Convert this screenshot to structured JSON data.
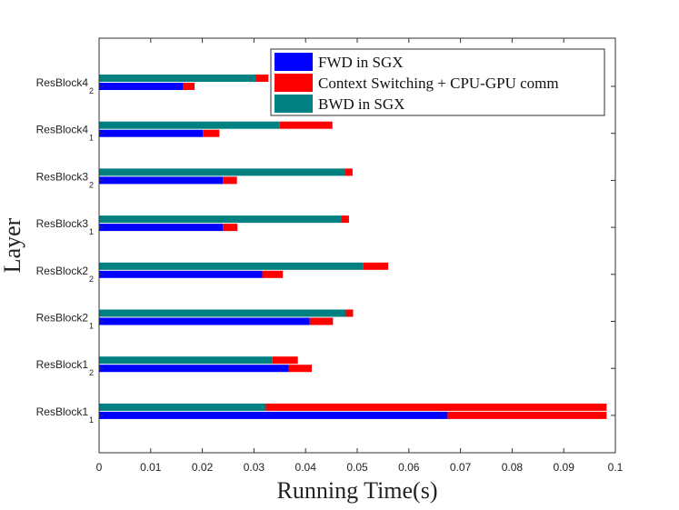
{
  "chart_data": {
    "type": "bar",
    "orientation": "horizontal",
    "stacked": true,
    "title": "",
    "xlabel": "Running Time(s)",
    "ylabel": "Layer",
    "xlim": [
      0,
      0.1
    ],
    "xticks": [
      "0",
      "0.01",
      "0.02",
      "0.03",
      "0.04",
      "0.05",
      "0.06",
      "0.07",
      "0.08",
      "0.09",
      "0.1"
    ],
    "grid": false,
    "legend_position": "top-right",
    "categories": [
      {
        "name": "ResBlock4",
        "sub": "2"
      },
      {
        "name": "ResBlock4",
        "sub": "1"
      },
      {
        "name": "ResBlock3",
        "sub": "2"
      },
      {
        "name": "ResBlock3",
        "sub": "1"
      },
      {
        "name": "ResBlock2",
        "sub": "2"
      },
      {
        "name": "ResBlock2",
        "sub": "1"
      },
      {
        "name": "ResBlock1",
        "sub": "2"
      },
      {
        "name": "ResBlock1",
        "sub": "1"
      }
    ],
    "series": [
      {
        "name": "FWD in SGX",
        "color": "#0000ff",
        "values": [
          0.0162,
          0.0201,
          0.024,
          0.024,
          0.0316,
          0.0408,
          0.0367,
          0.0675
        ]
      },
      {
        "name": "Context Switching + CPU-GPU comm",
        "color": "#ff0000",
        "fwd_values": [
          0.0023,
          0.0032,
          0.0027,
          0.0028,
          0.004,
          0.0045,
          0.0045,
          0.0308
        ],
        "bwd_values": [
          0.0025,
          0.0102,
          0.0014,
          0.0014,
          0.0048,
          0.0014,
          0.0049,
          0.066
        ]
      },
      {
        "name": "BWD in SGX",
        "color": "#008080",
        "values": [
          0.0303,
          0.035,
          0.0477,
          0.047,
          0.0512,
          0.0478,
          0.0336,
          0.0323
        ]
      }
    ]
  }
}
